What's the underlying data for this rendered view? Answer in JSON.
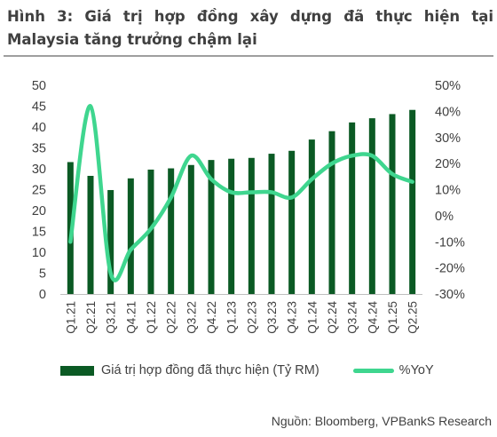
{
  "header": {
    "title_line1": "Hình 3: Giá trị hợp đồng xây dựng đã thực hiện tại",
    "title_line2": "Malaysia tăng trưởng chậm lại"
  },
  "footer": {
    "source": "Nguồn: Bloomberg, VPBankS Research"
  },
  "colors": {
    "bar": "#0b5a24",
    "line": "#3fd68f",
    "rule": "#9e9e9e",
    "axis": "#bfbfbf",
    "text": "#404040"
  },
  "chart_data": {
    "type": "bar",
    "categories": [
      "Q1.21",
      "Q2.21",
      "Q3.21",
      "Q4.21",
      "Q1.22",
      "Q2.22",
      "Q3.22",
      "Q4.22",
      "Q1.23",
      "Q2.23",
      "Q3.23",
      "Q4.23",
      "Q1.24",
      "Q2.24",
      "Q3.24",
      "Q4.24",
      "Q1.25",
      "Q2.25"
    ],
    "series": [
      {
        "name": "Giá trị hợp đồng đã thực hiện (Tỷ RM)",
        "type": "bar",
        "axis": "left",
        "values": [
          31.6,
          28.3,
          24.9,
          27.7,
          29.8,
          30.1,
          30.9,
          32.1,
          32.4,
          32.6,
          33.6,
          34.3,
          37.0,
          39.0,
          41.1,
          42.1,
          43.1,
          44.1
        ]
      },
      {
        "name": "%YoY",
        "type": "line",
        "axis": "right",
        "values": [
          -10,
          42,
          -22,
          -13,
          -5,
          7,
          23,
          14,
          9,
          9,
          9,
          7,
          14,
          20,
          23,
          23,
          16,
          13
        ]
      }
    ],
    "y_left": {
      "min": 0,
      "max": 50,
      "step": 5,
      "ticks": [
        "0",
        "5",
        "10",
        "15",
        "20",
        "25",
        "30",
        "35",
        "40",
        "45",
        "50"
      ]
    },
    "y_right": {
      "min": -30,
      "max": 50,
      "step": 10,
      "ticks": [
        "-30%",
        "-20%",
        "-10%",
        "0%",
        "10%",
        "20%",
        "30%",
        "40%",
        "50%"
      ]
    },
    "grid": false,
    "legend_position": "bottom"
  }
}
